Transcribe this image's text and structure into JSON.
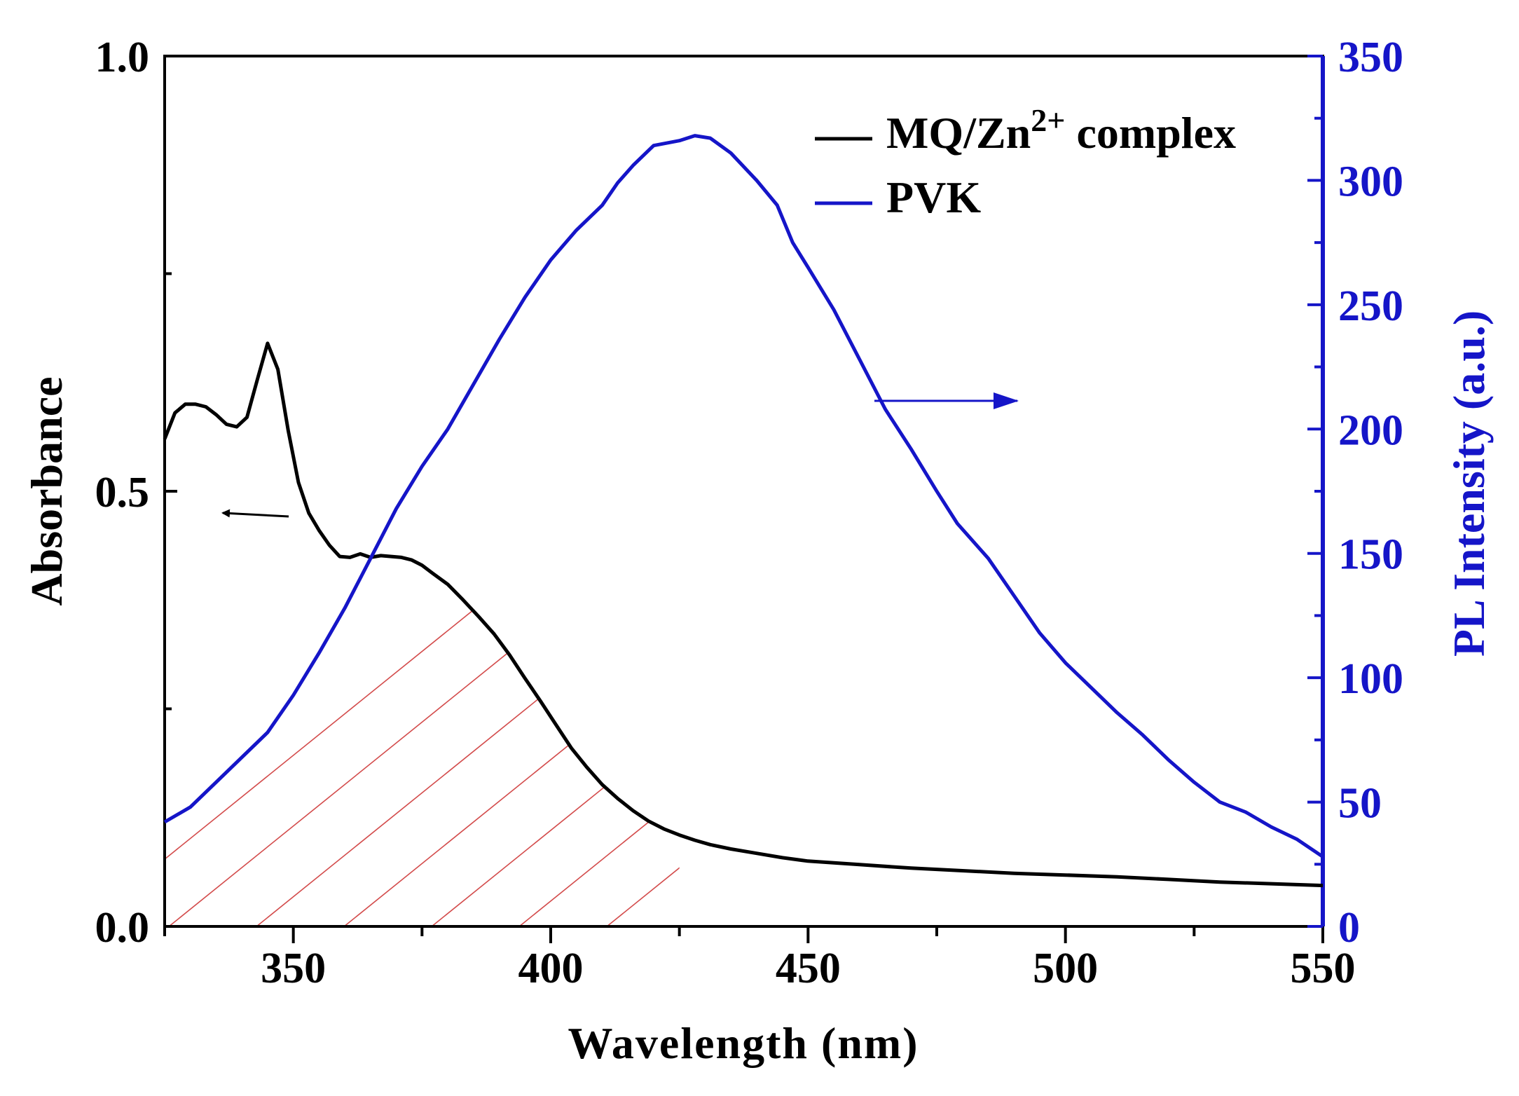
{
  "chart_data": {
    "type": "line",
    "xlabel": "Wavelength (nm)",
    "ylabel_left": "Absorbance",
    "ylabel_right": "PL Intensity (a.u.)",
    "xlim": [
      325,
      550
    ],
    "ylim_left": [
      0.0,
      1.0
    ],
    "ylim_right": [
      0,
      350
    ],
    "x_ticks": [
      "350",
      "400",
      "450",
      "500",
      "550"
    ],
    "y_left_ticks": [
      "0.0",
      "0.5",
      "1.0"
    ],
    "y_right_ticks": [
      "0",
      "50",
      "100",
      "150",
      "200",
      "250",
      "300",
      "350"
    ],
    "legend": {
      "position": "top-right",
      "entries": [
        {
          "name": "MQ/Zn",
          "sup": "2+",
          "suffix": " complex",
          "color": "#000000"
        },
        {
          "name": "PVK",
          "color": "#1515c8"
        }
      ]
    },
    "annotations": [
      {
        "type": "arrow",
        "direction": "left",
        "points_to": "left axis (Absorbance)",
        "color": "#000000"
      },
      {
        "type": "arrow",
        "direction": "right",
        "points_to": "right axis (PL Intensity)",
        "color": "#1515c8"
      },
      {
        "type": "hatched_region",
        "description": "spectral overlap of absorbance and PL",
        "color": "#d34b4b"
      }
    ],
    "series": [
      {
        "name": "MQ/Zn2+ complex",
        "axis": "left",
        "color": "#000000",
        "points": [
          [
            325,
            0.56
          ],
          [
            327,
            0.59
          ],
          [
            329,
            0.6
          ],
          [
            331,
            0.6
          ],
          [
            333,
            0.597
          ],
          [
            335,
            0.588
          ],
          [
            337,
            0.577
          ],
          [
            339,
            0.574
          ],
          [
            341,
            0.585
          ],
          [
            343,
            0.628
          ],
          [
            345,
            0.67
          ],
          [
            347,
            0.64
          ],
          [
            349,
            0.57
          ],
          [
            351,
            0.51
          ],
          [
            353,
            0.475
          ],
          [
            355,
            0.455
          ],
          [
            357,
            0.438
          ],
          [
            359,
            0.425
          ],
          [
            361,
            0.424
          ],
          [
            363,
            0.428
          ],
          [
            365,
            0.424
          ],
          [
            367,
            0.426
          ],
          [
            369,
            0.425
          ],
          [
            371,
            0.424
          ],
          [
            373,
            0.421
          ],
          [
            375,
            0.415
          ],
          [
            377,
            0.406
          ],
          [
            380,
            0.393
          ],
          [
            383,
            0.375
          ],
          [
            386,
            0.356
          ],
          [
            389,
            0.336
          ],
          [
            392,
            0.312
          ],
          [
            395,
            0.285
          ],
          [
            398,
            0.259
          ],
          [
            401,
            0.232
          ],
          [
            404,
            0.205
          ],
          [
            407,
            0.183
          ],
          [
            410,
            0.163
          ],
          [
            413,
            0.147
          ],
          [
            416,
            0.133
          ],
          [
            419,
            0.121
          ],
          [
            422,
            0.112
          ],
          [
            425,
            0.105
          ],
          [
            428,
            0.099
          ],
          [
            431,
            0.094
          ],
          [
            435,
            0.089
          ],
          [
            440,
            0.084
          ],
          [
            445,
            0.079
          ],
          [
            450,
            0.075
          ],
          [
            460,
            0.071
          ],
          [
            470,
            0.067
          ],
          [
            480,
            0.064
          ],
          [
            490,
            0.061
          ],
          [
            500,
            0.059
          ],
          [
            510,
            0.057
          ],
          [
            520,
            0.054
          ],
          [
            530,
            0.051
          ],
          [
            540,
            0.049
          ],
          [
            550,
            0.047
          ]
        ]
      },
      {
        "name": "PVK",
        "axis": "right",
        "color": "#1515c8",
        "points": [
          [
            325,
            42
          ],
          [
            330,
            48
          ],
          [
            335,
            58
          ],
          [
            340,
            68
          ],
          [
            345,
            78
          ],
          [
            350,
            93
          ],
          [
            355,
            110
          ],
          [
            360,
            128
          ],
          [
            365,
            148
          ],
          [
            370,
            168
          ],
          [
            375,
            185
          ],
          [
            380,
            200
          ],
          [
            385,
            218
          ],
          [
            390,
            236
          ],
          [
            395,
            253
          ],
          [
            400,
            268
          ],
          [
            405,
            280
          ],
          [
            410,
            290
          ],
          [
            413,
            299
          ],
          [
            416,
            306
          ],
          [
            420,
            314
          ],
          [
            425,
            316
          ],
          [
            428,
            318
          ],
          [
            431,
            317
          ],
          [
            435,
            311
          ],
          [
            440,
            300
          ],
          [
            444,
            290
          ],
          [
            447,
            275
          ],
          [
            450,
            265
          ],
          [
            455,
            248
          ],
          [
            460,
            228
          ],
          [
            465,
            208
          ],
          [
            470,
            192
          ],
          [
            475,
            175
          ],
          [
            479,
            162
          ],
          [
            485,
            148
          ],
          [
            490,
            133
          ],
          [
            495,
            118
          ],
          [
            500,
            106
          ],
          [
            505,
            96
          ],
          [
            510,
            86
          ],
          [
            515,
            77
          ],
          [
            520,
            67
          ],
          [
            525,
            58
          ],
          [
            530,
            50
          ],
          [
            535,
            46
          ],
          [
            540,
            40
          ],
          [
            545,
            35
          ],
          [
            550,
            28
          ]
        ]
      }
    ]
  }
}
